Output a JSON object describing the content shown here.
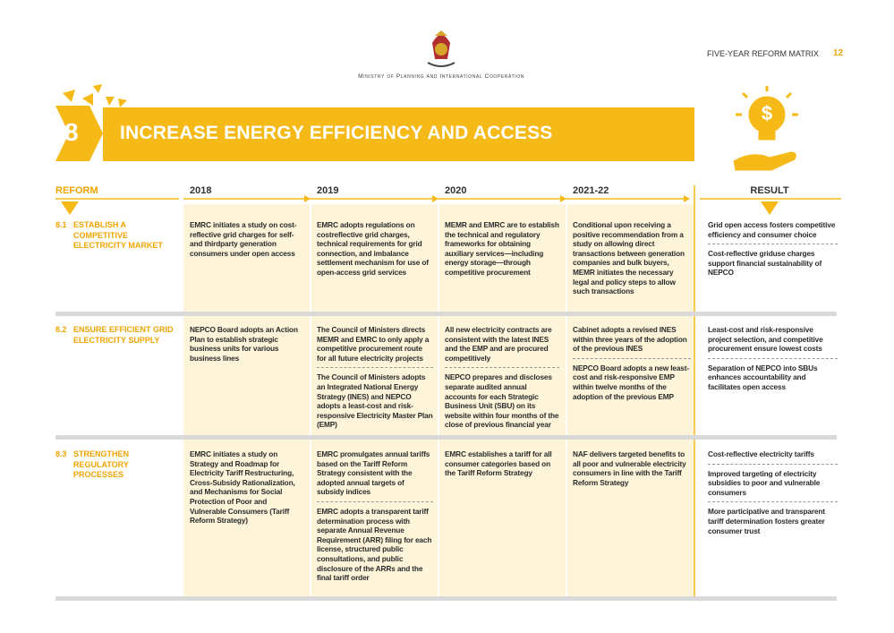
{
  "header": {
    "ministry": "Ministry of Planning and International Cooperation",
    "matrix_label": "FIVE-YEAR REFORM MATRIX",
    "page_number": "12"
  },
  "banner": {
    "number": "8",
    "title": "INCREASE ENERGY EFFICIENCY AND ACCESS"
  },
  "columns": {
    "reform": "REFORM",
    "years": [
      "2018",
      "2019",
      "2020",
      "2021-22"
    ],
    "result": "RESULT"
  },
  "rows": [
    {
      "id": "8.1",
      "label": "ESTABLISH A COMPETITIVE ELECTRICITY MARKET",
      "cells": [
        [
          "EMRC initiates a study on cost-reflective grid charges for self- and thirdparty generation consumers under open access"
        ],
        [
          "EMRC adopts regulations on costreflective grid charges, technical requirements for grid connection, and imbalance settlement mechanism for use of open-access grid services"
        ],
        [
          "MEMR and EMRC are to establish the technical and regulatory frameworks for obtaining auxiliary services—including energy storage—through competitive procurement"
        ],
        [
          "Conditional upon receiving a positive recommendation from a study on allowing direct transactions between generation companies and bulk buyers, MEMR initiates the necessary legal and policy steps to allow such transactions"
        ]
      ],
      "results": [
        "Grid open access fosters competitive efficiency and consumer choice",
        "Cost-reflective griduse charges support financial sustainability of NEPCO"
      ]
    },
    {
      "id": "8.2",
      "label": "ENSURE EFFICIENT GRID ELECTRICITY SUPPLY",
      "cells": [
        [
          "NEPCO Board adopts an Action Plan to establish strategic business units for various business lines"
        ],
        [
          "The Council of Ministers directs MEMR and EMRC to only apply a competitive procurement route for all future electricity projects",
          "The Council of Ministers adopts an Integrated National Energy Strategy (INES) and NEPCO adopts a least-cost and risk-responsive Electricity Master Plan (EMP)"
        ],
        [
          "All new electricity contracts are consistent with the latest INES and the EMP and are procured competitively",
          "NEPCO prepares and discloses separate audited annual accounts for each Strategic Business Unit (SBU) on its website within four months of the close of previous financial year"
        ],
        [
          "Cabinet adopts a revised INES within three years of the adoption of the previous INES",
          "NEPCO Board adopts a new least-cost and risk-responsive EMP within twelve months of the adoption of the previous EMP"
        ]
      ],
      "results": [
        "Least-cost and risk-responsive project selection, and competitive procurement ensure lowest costs",
        "Separation of NEPCO into SBUs enhances accountability and facilitates open access"
      ]
    },
    {
      "id": "8.3",
      "label": "STRENGTHEN REGULATORY PROCESSES",
      "cells": [
        [
          "EMRC initiates a study on Strategy and Roadmap for Electricity Tariff Restructuring, Cross-Subsidy Rationalization, and Mechanisms for Social Protection of Poor and Vulnerable Consumers (Tariff Reform Strategy)"
        ],
        [
          "EMRC promulgates annual tariffs based on the Tariff Reform Strategy consistent with the adopted annual targets of subsidy indices",
          "EMRC adopts a transparent tariff determination process with separate Annual Revenue Requirement (ARR) filing for each license, structured public consultations, and public disclosure of the ARRs and the final tariff order"
        ],
        [
          "EMRC establishes a tariff for all consumer categories based on the Tariff Reform Strategy"
        ],
        [
          "NAF delivers targeted benefits to all poor and vulnerable electricity consumers in line with the Tariff Reform Strategy"
        ]
      ],
      "results": [
        "Cost-reflective electricity tariffs",
        "Improved targeting of electricity subsidies to poor and vulnerable consumers",
        "More participative and transparent tariff determination fosters greater consumer trust"
      ]
    }
  ]
}
